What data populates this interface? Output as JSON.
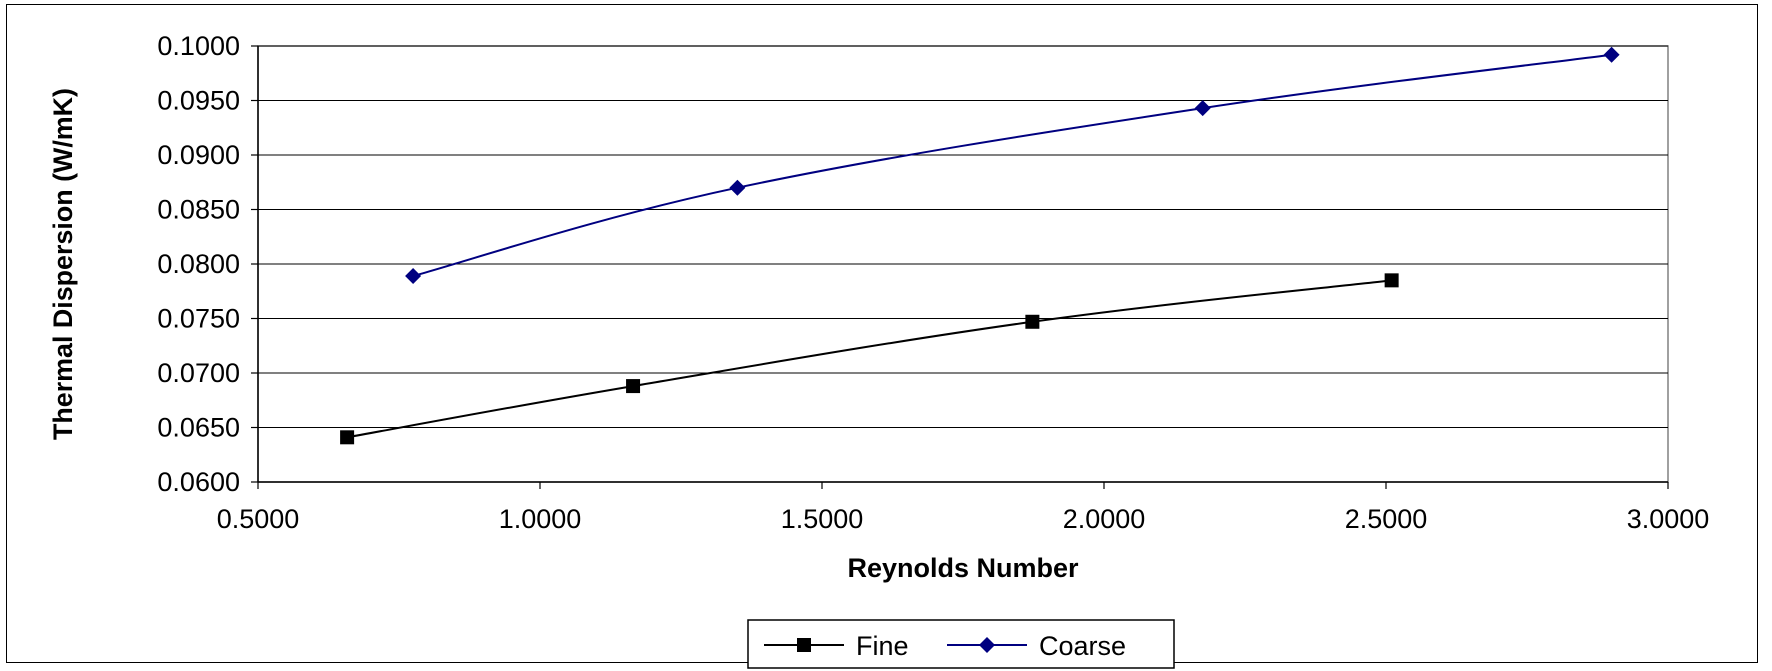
{
  "chart_data": {
    "type": "line",
    "title": "",
    "xlabel": "Reynolds Number",
    "ylabel": "Thermal Dispersion (W/mK)",
    "xlim": [
      0.5,
      3.0
    ],
    "ylim": [
      0.06,
      0.1
    ],
    "x_ticks": [
      "0.5000",
      "1.0000",
      "1.5000",
      "2.0000",
      "2.5000",
      "3.0000"
    ],
    "y_ticks": [
      "0.0600",
      "0.0650",
      "0.0700",
      "0.0750",
      "0.0800",
      "0.0850",
      "0.0900",
      "0.0950",
      "0.1000"
    ],
    "grid": "horizontal",
    "legend_position": "bottom",
    "series": [
      {
        "name": "Fine",
        "color": "#000000",
        "marker": "square",
        "x": [
          0.658,
          1.165,
          1.873,
          2.51
        ],
        "y": [
          0.0641,
          0.0688,
          0.0747,
          0.0785
        ]
      },
      {
        "name": "Coarse",
        "color": "#000080",
        "marker": "diamond",
        "x": [
          0.775,
          1.35,
          2.175,
          2.9
        ],
        "y": [
          0.0789,
          0.087,
          0.0943,
          0.0992
        ]
      }
    ]
  }
}
